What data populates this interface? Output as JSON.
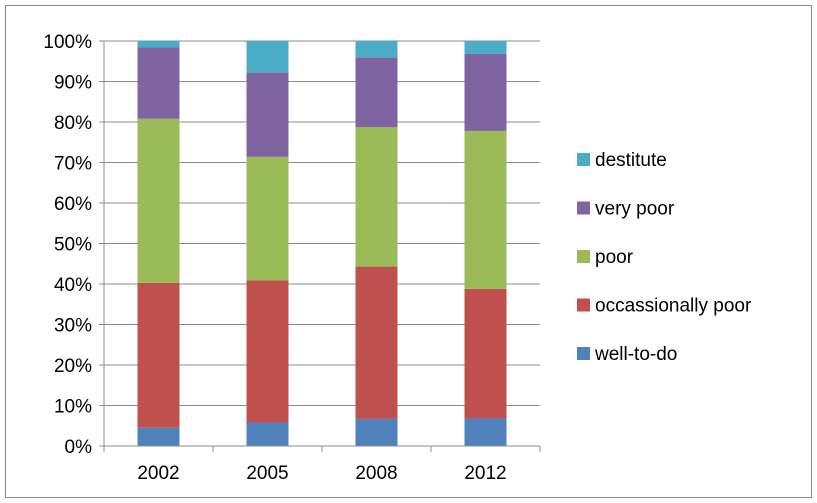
{
  "chart_data": {
    "type": "bar",
    "stacked": true,
    "percent": true,
    "categories": [
      "2002",
      "2005",
      "2008",
      "2012"
    ],
    "series": [
      {
        "name": "well-to-do",
        "color": "#4F81BD",
        "values": [
          4.5,
          5.8,
          6.7,
          6.8
        ]
      },
      {
        "name": "occassionally poor",
        "color": "#C0504D",
        "values": [
          35.8,
          35.1,
          37.6,
          32.0
        ]
      },
      {
        "name": "poor",
        "color": "#9BBB59",
        "values": [
          40.5,
          30.5,
          34.4,
          39.0
        ]
      },
      {
        "name": "very poor",
        "color": "#8064A2",
        "values": [
          17.6,
          20.8,
          17.2,
          19.0
        ]
      },
      {
        "name": "destitute",
        "color": "#4BACC6",
        "values": [
          1.6,
          7.8,
          4.1,
          3.2
        ]
      }
    ],
    "y_ticks": [
      "0%",
      "10%",
      "20%",
      "30%",
      "40%",
      "50%",
      "60%",
      "70%",
      "80%",
      "90%",
      "100%"
    ],
    "ylim": [
      0,
      100
    ],
    "grid": true,
    "legend_position": "right"
  }
}
